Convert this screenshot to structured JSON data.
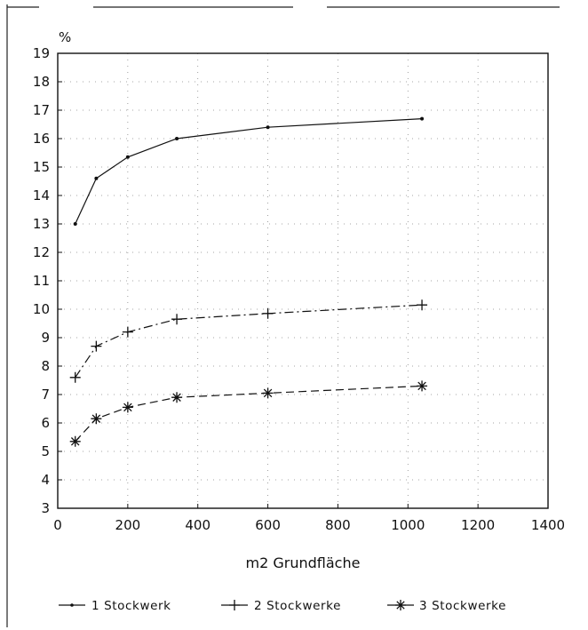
{
  "chart_data": {
    "type": "line",
    "y_unit_label": "%",
    "xlabel": "m2 Grundfläche",
    "ylabel": "",
    "xlim": [
      0,
      1400
    ],
    "ylim": [
      3,
      19
    ],
    "x_ticks": [
      "0",
      "200",
      "400",
      "600",
      "800",
      "1000",
      "1200",
      "1400"
    ],
    "y_ticks": [
      "3",
      "4",
      "5",
      "6",
      "7",
      "8",
      "9",
      "10",
      "11",
      "12",
      "13",
      "14",
      "15",
      "16",
      "17",
      "18",
      "19"
    ],
    "grid": "dotted",
    "legend_position": "bottom",
    "series": [
      {
        "name": "1 Stockwerk",
        "marker": "dot",
        "line": "solid",
        "x": [
          50,
          110,
          200,
          340,
          600,
          1040
        ],
        "y": [
          13.0,
          14.6,
          15.35,
          16.0,
          16.4,
          16.7
        ]
      },
      {
        "name": "2 Stockwerke",
        "marker": "plus",
        "line": "dash-dot",
        "x": [
          50,
          110,
          200,
          340,
          600,
          1040
        ],
        "y": [
          7.6,
          8.7,
          9.2,
          9.65,
          9.85,
          10.15
        ]
      },
      {
        "name": "3 Stockwerke",
        "marker": "asterisk",
        "line": "dashed",
        "x": [
          50,
          110,
          200,
          340,
          600,
          1040
        ],
        "y": [
          5.35,
          6.15,
          6.55,
          6.9,
          7.05,
          7.3
        ]
      }
    ]
  }
}
